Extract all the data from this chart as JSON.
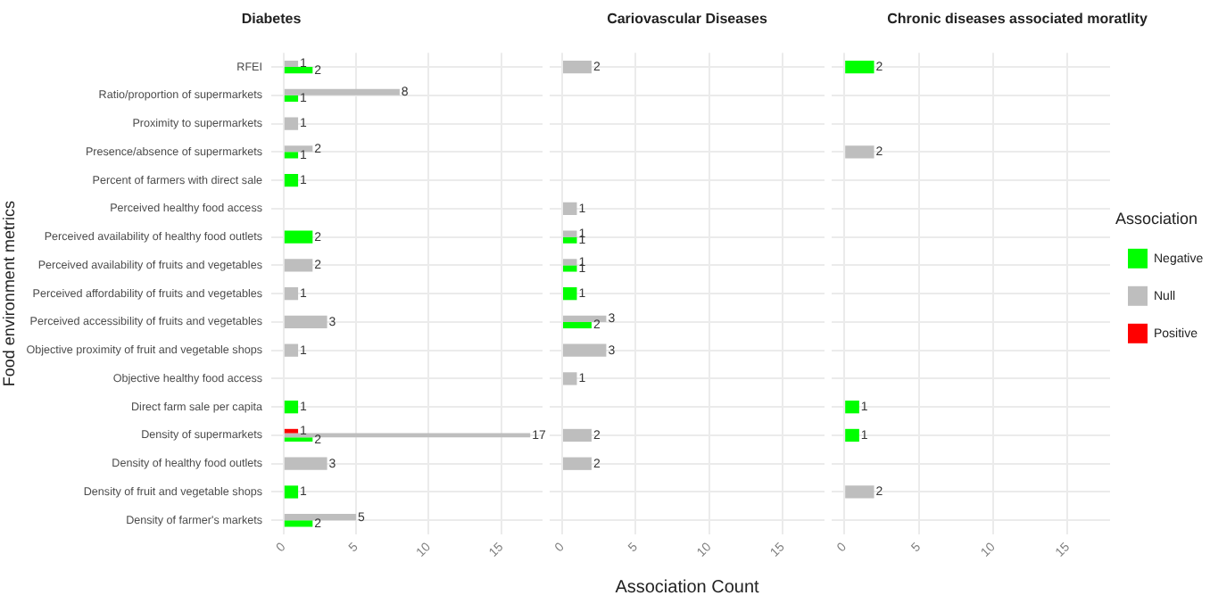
{
  "chart_data": [
    {
      "type": "bar",
      "orientation": "horizontal",
      "title": "Diabetes",
      "ylabel": "Food environment metrics",
      "categories": [
        "RFEI",
        "Ratio/proportion of supermarkets",
        "Proximity to supermarkets",
        "Presence/absence of supermarkets",
        "Percent of farmers with direct sale",
        "Perceived healthy food access",
        "Perceived availability of healthy food outlets",
        "Perceived availability of fruits and vegetables",
        "Perceived affordability of fruits and vegetables",
        "Perceived accessibility of fruits and vegetables",
        "Objective proximity of fruit and vegetable shops",
        "Objective healthy food access",
        "Direct farm sale per capita",
        "Density of supermarkets",
        "Density of healthy food outlets",
        "Density of fruit and vegetable shops",
        "Density of farmer's markets"
      ],
      "series": [
        {
          "color": "#ff0000",
          "values": [
            null,
            null,
            null,
            null,
            null,
            null,
            null,
            null,
            null,
            null,
            null,
            null,
            null,
            1,
            null,
            null,
            null
          ]
        },
        {
          "color": "#bebebe",
          "values": [
            1,
            8,
            1,
            2,
            null,
            null,
            null,
            2,
            1,
            3,
            1,
            null,
            null,
            17,
            3,
            null,
            5
          ]
        },
        {
          "color": "#00ff00",
          "values": [
            2,
            1,
            null,
            1,
            1,
            null,
            2,
            null,
            null,
            null,
            null,
            null,
            1,
            2,
            null,
            1,
            2
          ]
        }
      ],
      "xlim": [
        -0.85,
        17.85
      ],
      "xticks": [
        0,
        5,
        10,
        15
      ],
      "grid": true,
      "data_labels": true
    },
    {
      "type": "bar",
      "orientation": "horizontal",
      "title": "Cariovascular Diseases",
      "xlabel": "Association Count",
      "categories": [
        null,
        null,
        null,
        null,
        null,
        null,
        null,
        null,
        null,
        null,
        null,
        null,
        null,
        null,
        null,
        null,
        null
      ],
      "series": [
        {
          "color": "#ff0000",
          "values": [
            null,
            null,
            null,
            null,
            null,
            null,
            null,
            null,
            null,
            null,
            null,
            null,
            null,
            null,
            null,
            null,
            null
          ]
        },
        {
          "color": "#bebebe",
          "values": [
            2,
            null,
            null,
            null,
            null,
            1,
            1,
            1,
            null,
            3,
            3,
            1,
            null,
            2,
            2,
            null,
            null
          ]
        },
        {
          "color": "#00ff00",
          "values": [
            null,
            null,
            null,
            null,
            null,
            null,
            1,
            1,
            1,
            2,
            null,
            null,
            null,
            null,
            null,
            null,
            null
          ]
        }
      ],
      "xlim": [
        -0.85,
        17.85
      ],
      "xticks": [
        0,
        5,
        10,
        15
      ],
      "grid": true,
      "data_labels": true,
      "tick_labels": "x"
    },
    {
      "type": "bar",
      "orientation": "horizontal",
      "title": "Chronic diseases associated moratlity",
      "legend_title": "Association",
      "legend": "right",
      "categories": [
        null,
        null,
        null,
        null,
        null,
        null,
        null,
        null,
        null,
        null,
        null,
        null,
        null,
        null,
        null,
        null,
        null
      ],
      "series": [
        {
          "name": "Positive",
          "color": "#ff0000",
          "values": [
            null,
            null,
            null,
            null,
            null,
            null,
            null,
            null,
            null,
            null,
            null,
            null,
            null,
            null,
            null,
            null,
            null
          ]
        },
        {
          "name": "Null",
          "color": "#bebebe",
          "values": [
            null,
            null,
            null,
            2,
            null,
            null,
            null,
            null,
            null,
            null,
            null,
            null,
            null,
            null,
            null,
            2,
            null
          ]
        },
        {
          "name": "Negative",
          "color": "#00ff00",
          "values": [
            2,
            null,
            null,
            null,
            null,
            null,
            null,
            null,
            null,
            null,
            null,
            null,
            1,
            1,
            null,
            null,
            null
          ]
        }
      ],
      "xlim": [
        -0.85,
        17.85
      ],
      "xticks": [
        0,
        5,
        10,
        15
      ],
      "grid": true,
      "data_labels": true,
      "tick_labels": "x"
    }
  ]
}
